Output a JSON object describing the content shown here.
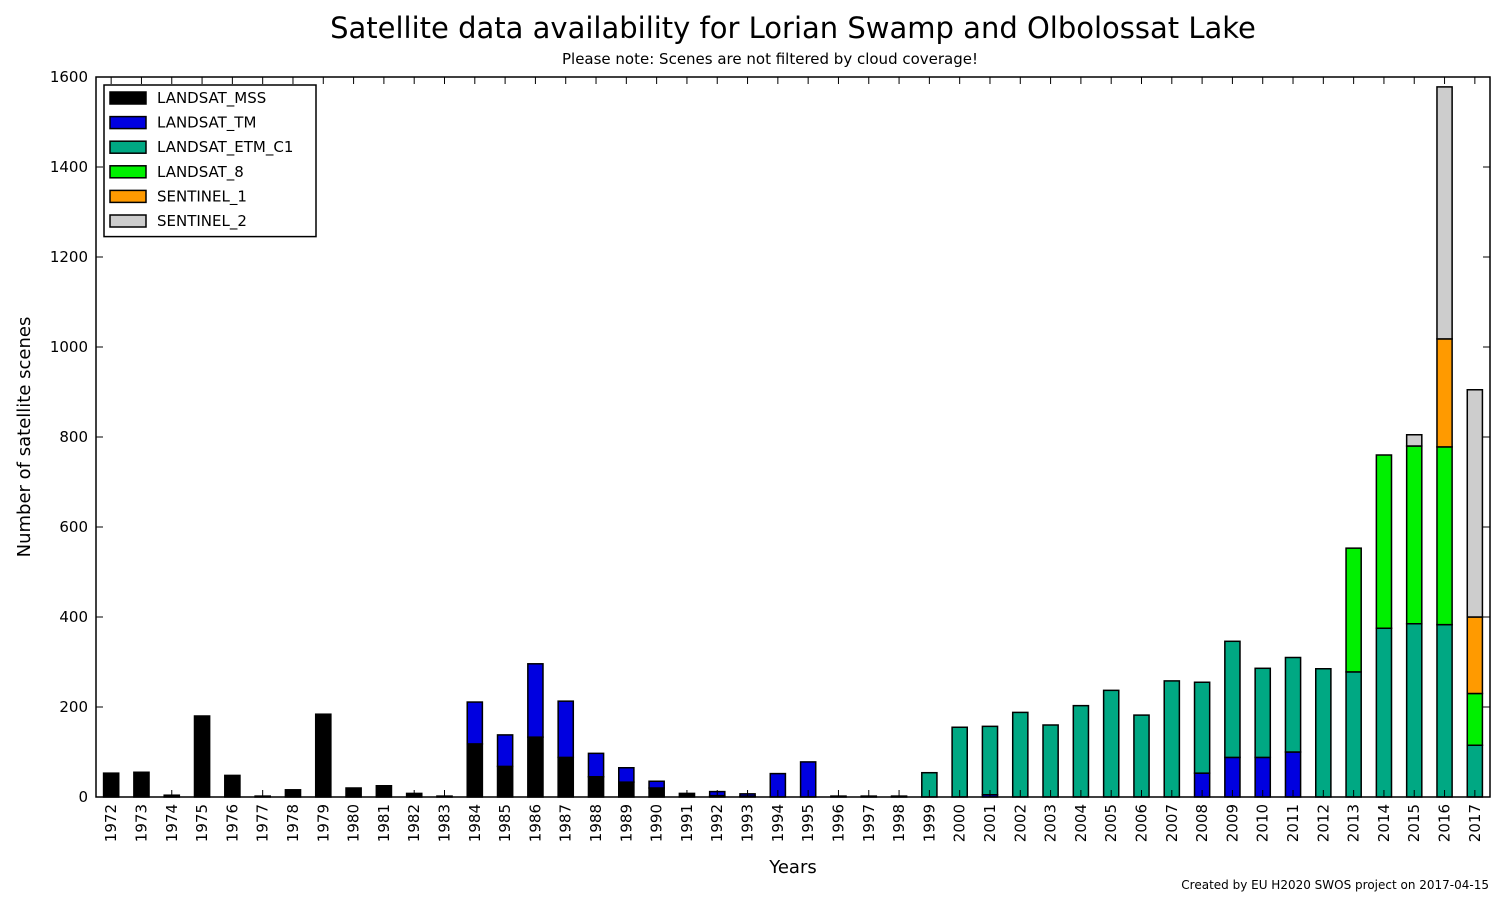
{
  "chart_data": {
    "type": "bar",
    "stacked": true,
    "title": "Satellite data availability for Lorian Swamp and Olbolossat Lake",
    "subtitle": "Please note: Scenes are not filtered by cloud coverage!",
    "xlabel": "Years",
    "ylabel": "Number of satellite scenes",
    "ylim": [
      0,
      1600
    ],
    "yticks": [
      "0",
      "200",
      "400",
      "600",
      "800",
      "1000",
      "1200",
      "1400",
      "1600"
    ],
    "grid": false,
    "legend_position": "top-left",
    "credit": "Created by EU H2020 SWOS project on 2017-04-15",
    "categories": [
      "1972",
      "1973",
      "1974",
      "1975",
      "1976",
      "1977",
      "1978",
      "1979",
      "1980",
      "1981",
      "1982",
      "1983",
      "1984",
      "1985",
      "1986",
      "1987",
      "1988",
      "1989",
      "1990",
      "1991",
      "1992",
      "1993",
      "1994",
      "1995",
      "1996",
      "1997",
      "1998",
      "1999",
      "2000",
      "2001",
      "2002",
      "2003",
      "2004",
      "2005",
      "2006",
      "2007",
      "2008",
      "2009",
      "2010",
      "2011",
      "2012",
      "2013",
      "2014",
      "2015",
      "2016",
      "2017"
    ],
    "series": [
      {
        "name": "LANDSAT_MSS",
        "color": "#000000",
        "values": [
          53,
          55,
          4,
          180,
          48,
          2,
          16,
          184,
          20,
          25,
          8,
          2,
          118,
          68,
          133,
          88,
          45,
          33,
          20,
          8,
          3,
          2,
          0,
          0,
          0,
          0,
          0,
          0,
          0,
          0,
          0,
          0,
          0,
          0,
          0,
          0,
          0,
          0,
          0,
          0,
          0,
          0,
          0,
          0,
          0,
          0
        ]
      },
      {
        "name": "LANDSAT_TM",
        "color": "#0000e0",
        "values": [
          0,
          0,
          0,
          0,
          0,
          0,
          0,
          0,
          0,
          0,
          0,
          0,
          93,
          70,
          163,
          125,
          52,
          32,
          15,
          0,
          9,
          5,
          52,
          78,
          2,
          2,
          2,
          0,
          0,
          5,
          0,
          0,
          0,
          0,
          0,
          0,
          53,
          88,
          88,
          100,
          0,
          0,
          0,
          0,
          0,
          0
        ]
      },
      {
        "name": "LANDSAT_ETM_C1",
        "color": "#00a883",
        "values": [
          0,
          0,
          0,
          0,
          0,
          0,
          0,
          0,
          0,
          0,
          0,
          0,
          0,
          0,
          0,
          0,
          0,
          0,
          0,
          0,
          0,
          0,
          0,
          0,
          0,
          0,
          0,
          54,
          155,
          152,
          188,
          160,
          203,
          237,
          182,
          258,
          202,
          258,
          198,
          210,
          285,
          278,
          375,
          385,
          383,
          115
        ]
      },
      {
        "name": "LANDSAT_8",
        "color": "#00f000",
        "values": [
          0,
          0,
          0,
          0,
          0,
          0,
          0,
          0,
          0,
          0,
          0,
          0,
          0,
          0,
          0,
          0,
          0,
          0,
          0,
          0,
          0,
          0,
          0,
          0,
          0,
          0,
          0,
          0,
          0,
          0,
          0,
          0,
          0,
          0,
          0,
          0,
          0,
          0,
          0,
          0,
          0,
          275,
          385,
          395,
          395,
          115
        ]
      },
      {
        "name": "SENTINEL_1",
        "color": "#ff9a00",
        "values": [
          0,
          0,
          0,
          0,
          0,
          0,
          0,
          0,
          0,
          0,
          0,
          0,
          0,
          0,
          0,
          0,
          0,
          0,
          0,
          0,
          0,
          0,
          0,
          0,
          0,
          0,
          0,
          0,
          0,
          0,
          0,
          0,
          0,
          0,
          0,
          0,
          0,
          0,
          0,
          0,
          0,
          0,
          0,
          0,
          240,
          170
        ]
      },
      {
        "name": "SENTINEL_2",
        "color": "#cdcdcd",
        "values": [
          0,
          0,
          0,
          0,
          0,
          0,
          0,
          0,
          0,
          0,
          0,
          0,
          0,
          0,
          0,
          0,
          0,
          0,
          0,
          0,
          0,
          0,
          0,
          0,
          0,
          0,
          0,
          0,
          0,
          0,
          0,
          0,
          0,
          0,
          0,
          0,
          0,
          0,
          0,
          0,
          0,
          0,
          0,
          25,
          560,
          505
        ]
      }
    ]
  }
}
